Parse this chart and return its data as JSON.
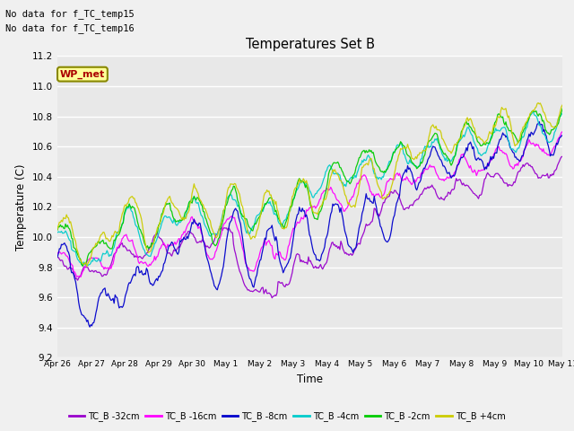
{
  "title": "Temperatures Set B",
  "xlabel": "Time",
  "ylabel": "Temperature (C)",
  "ylim": [
    9.2,
    11.2
  ],
  "no_data_lines": [
    "No data for f_TC_temp15",
    "No data for f_TC_temp16"
  ],
  "wp_met_label": "WP_met",
  "wp_met_fgcolor": "#aa0000",
  "wp_met_bgcolor": "#ffff99",
  "wp_met_edgecolor": "#888800",
  "plot_bg": "#e8e8e8",
  "fig_bg": "#f0f0f0",
  "grid_color": "#ffffff",
  "series_colors": [
    "#9900cc",
    "#ff00ff",
    "#0000cc",
    "#00cccc",
    "#00cc00",
    "#cccc00"
  ],
  "series_labels": [
    "TC_B -32cm",
    "TC_B -16cm",
    "TC_B -8cm",
    "TC_B -4cm",
    "TC_B -2cm",
    "TC_B +4cm"
  ],
  "x_tick_labels": [
    "Apr 26",
    "Apr 27",
    "Apr 28",
    "Apr 29",
    "Apr 30",
    "May 1",
    "May 2",
    "May 3",
    "May 4",
    "May 5",
    "May 6",
    "May 7",
    "May 8",
    "May 9",
    "May 10",
    "May 11"
  ],
  "n_days": 15,
  "n_points": 500,
  "seed": 77
}
